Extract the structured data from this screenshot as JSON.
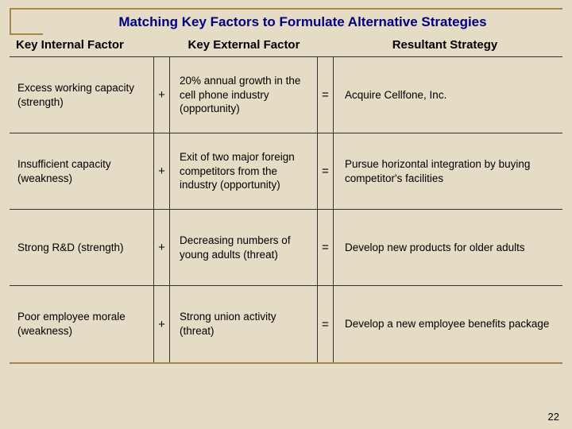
{
  "title": "Matching Key Factors to Formulate Alternative Strategies",
  "headers": {
    "col1": "Key Internal Factor",
    "col2": "Key External Factor",
    "col3": "Resultant Strategy"
  },
  "ops": {
    "plus": "+",
    "equals": "="
  },
  "rows": [
    {
      "internal": "Excess working capacity (strength)",
      "external": "20% annual growth in the cell phone industry (opportunity)",
      "strategy": "Acquire Cellfone, Inc."
    },
    {
      "internal": "Insufficient capacity (weakness)",
      "external": "Exit of two major foreign competitors from the industry (opportunity)",
      "strategy": "Pursue horizontal integration by buying competitor's facilities"
    },
    {
      "internal": "Strong R&D (strength)",
      "external": "Decreasing numbers of young adults (threat)",
      "strategy": "Develop new products for older adults"
    },
    {
      "internal": "Poor employee morale (weakness)",
      "external": "Strong union activity (threat)",
      "strategy": "Develop a new employee benefits package"
    }
  ],
  "page_number": "22",
  "colors": {
    "background": "#e4dcc5",
    "rule": "#a8864a",
    "title_text": "#000080",
    "border": "#333333"
  }
}
